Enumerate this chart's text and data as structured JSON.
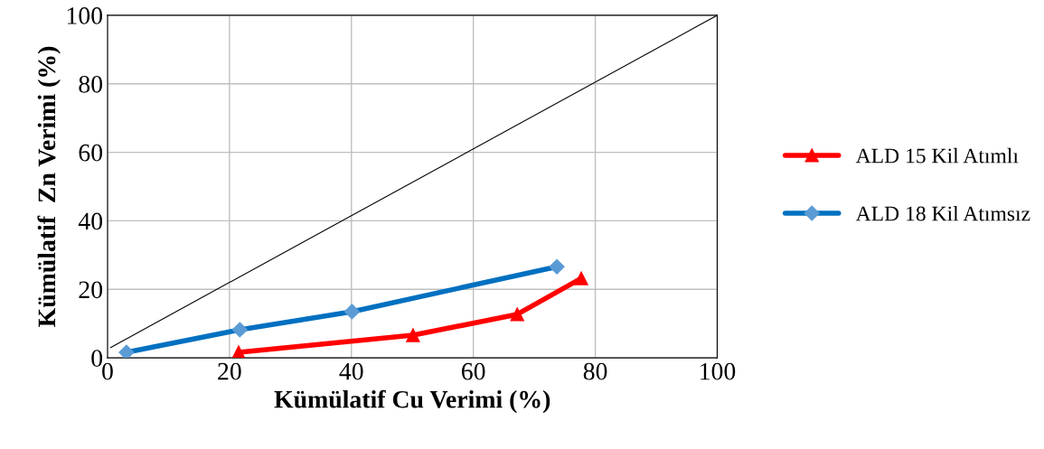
{
  "chart_data": {
    "type": "line",
    "xlabel": "Kümülatif Cu Verimi (%)",
    "ylabel": "Kümülatif  Zn Verimi (%)",
    "xlim": [
      0,
      100
    ],
    "ylim": [
      0,
      100
    ],
    "xticks": [
      0,
      20,
      40,
      60,
      80,
      100
    ],
    "yticks": [
      0,
      20,
      40,
      60,
      80,
      100
    ],
    "grid": true,
    "legend": "right",
    "series": [
      {
        "name": "ALD 15 Kil Atımlı",
        "color": "#ff0000",
        "marker": "triangle",
        "x": [
          21.5,
          50.1,
          67.2,
          77.7
        ],
        "values": [
          1.6,
          6.6,
          12.7,
          23.2
        ]
      },
      {
        "name": "ALD 18 Kil Atımsız",
        "color": "#0070c0",
        "marker": "diamond",
        "x": [
          3.1,
          21.7,
          40.1,
          73.7
        ],
        "values": [
          1.6,
          8.2,
          13.5,
          26.6
        ]
      },
      {
        "color": "#000000",
        "marker": "none",
        "x": [
          0.5,
          100
        ],
        "values": [
          3,
          100
        ]
      }
    ]
  }
}
